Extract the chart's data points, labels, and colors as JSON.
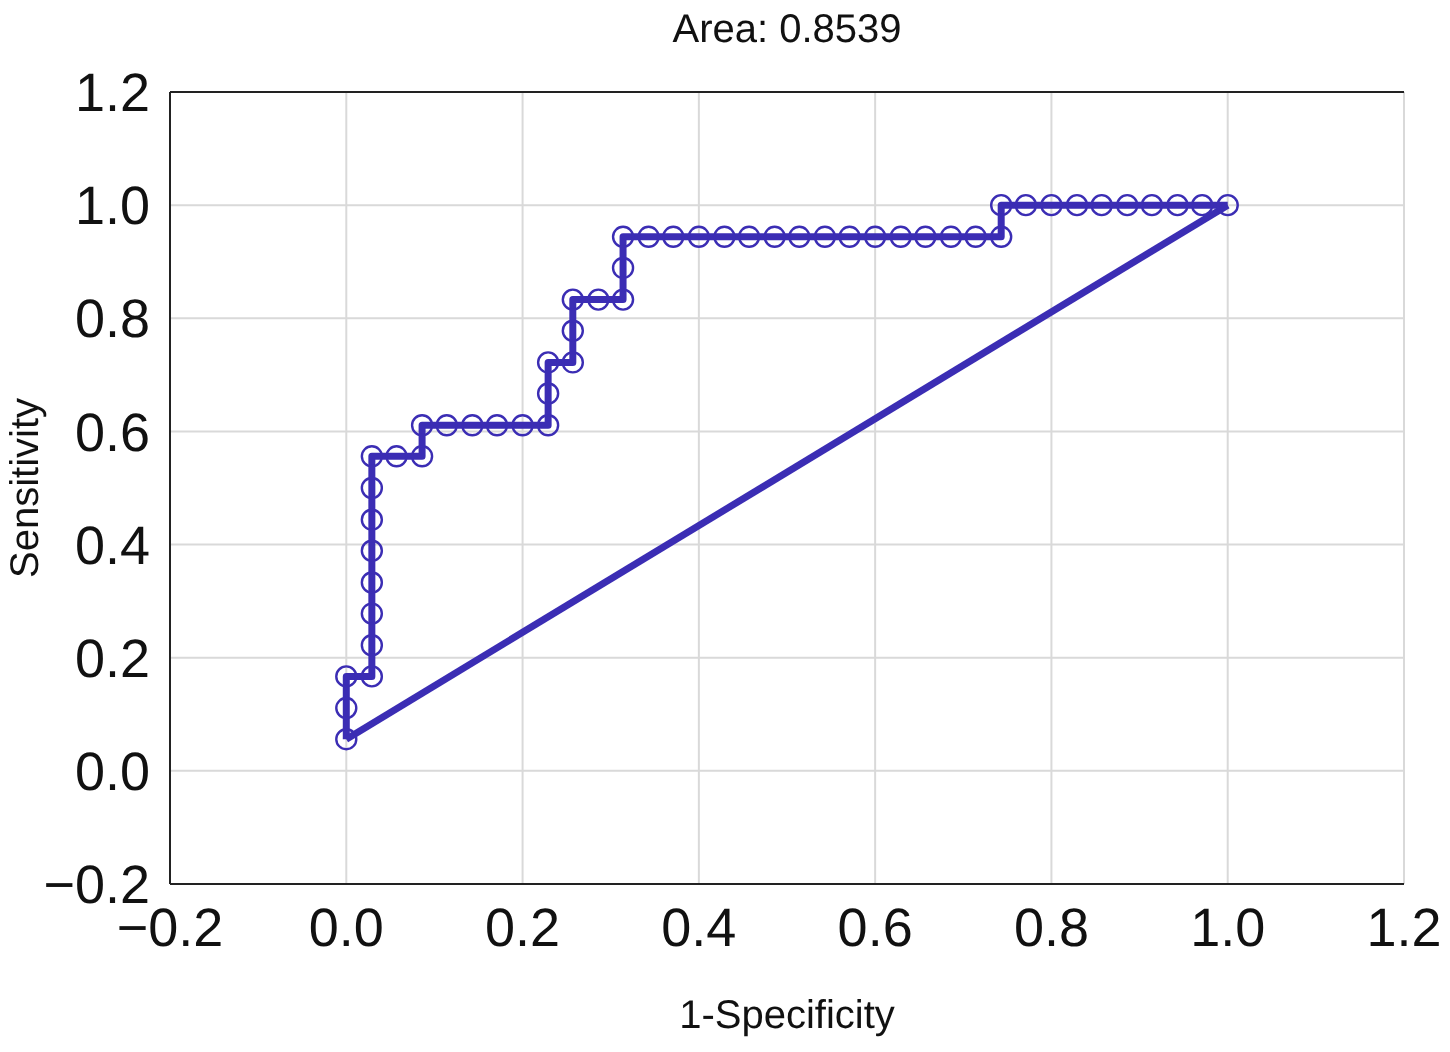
{
  "chart_data": {
    "type": "line",
    "title": "Area: 0.8539",
    "xlabel": "1-Specificity",
    "ylabel": "Sensitivity",
    "xlim": [
      -0.2,
      1.2
    ],
    "ylim": [
      -0.2,
      1.2
    ],
    "xticks": [
      {
        "value": -0.2,
        "label": "−0.2"
      },
      {
        "value": 0,
        "label": "0.0"
      },
      {
        "value": 0.2,
        "label": "0.2"
      },
      {
        "value": 0.4,
        "label": "0.4"
      },
      {
        "value": 0.6,
        "label": "0.6"
      },
      {
        "value": 0.8,
        "label": "0.8"
      },
      {
        "value": 1,
        "label": "1.0"
      },
      {
        "value": 1.2,
        "label": "1.2"
      }
    ],
    "yticks": [
      {
        "value": -0.2,
        "label": "−0.2"
      },
      {
        "value": 0,
        "label": "0.0"
      },
      {
        "value": 0.2,
        "label": "0.2"
      },
      {
        "value": 0.4,
        "label": "0.4"
      },
      {
        "value": 0.6,
        "label": "0.6"
      },
      {
        "value": 0.8,
        "label": "0.8"
      },
      {
        "value": 1,
        "label": "1.0"
      },
      {
        "value": 1.2,
        "label": "1.2"
      }
    ],
    "grid": true,
    "line_style": "solid",
    "series": [
      {
        "color": "#3b2db4",
        "marker": "circle",
        "x": [
          0,
          0,
          0,
          0.029,
          0.029,
          0.029,
          0.029,
          0.029,
          0.029,
          0.029,
          0.029,
          0.057,
          0.086,
          0.086,
          0.114,
          0.143,
          0.171,
          0.2,
          0.229,
          0.229,
          0.229,
          0.257,
          0.257,
          0.257,
          0.286,
          0.314,
          0.314,
          0.314,
          0.343,
          0.371,
          0.4,
          0.429,
          0.457,
          0.486,
          0.514,
          0.543,
          0.571,
          0.6,
          0.629,
          0.657,
          0.686,
          0.714,
          0.743,
          0.743,
          0.771,
          0.8,
          0.829,
          0.857,
          0.886,
          0.914,
          0.943,
          0.971,
          1
        ],
        "values": [
          0.056,
          0.111,
          0.167,
          0.167,
          0.222,
          0.278,
          0.333,
          0.389,
          0.444,
          0.5,
          0.556,
          0.556,
          0.556,
          0.611,
          0.611,
          0.611,
          0.611,
          0.611,
          0.611,
          0.667,
          0.722,
          0.722,
          0.778,
          0.833,
          0.833,
          0.833,
          0.889,
          0.944,
          0.944,
          0.944,
          0.944,
          0.944,
          0.944,
          0.944,
          0.944,
          0.944,
          0.944,
          0.944,
          0.944,
          0.944,
          0.944,
          0.944,
          0.944,
          1,
          1,
          1,
          1,
          1,
          1,
          1,
          1,
          1,
          1
        ]
      },
      {
        "color": "#3b2db4",
        "marker": "none",
        "x": [
          0,
          1
        ],
        "values": [
          0.056,
          1
        ]
      }
    ]
  }
}
